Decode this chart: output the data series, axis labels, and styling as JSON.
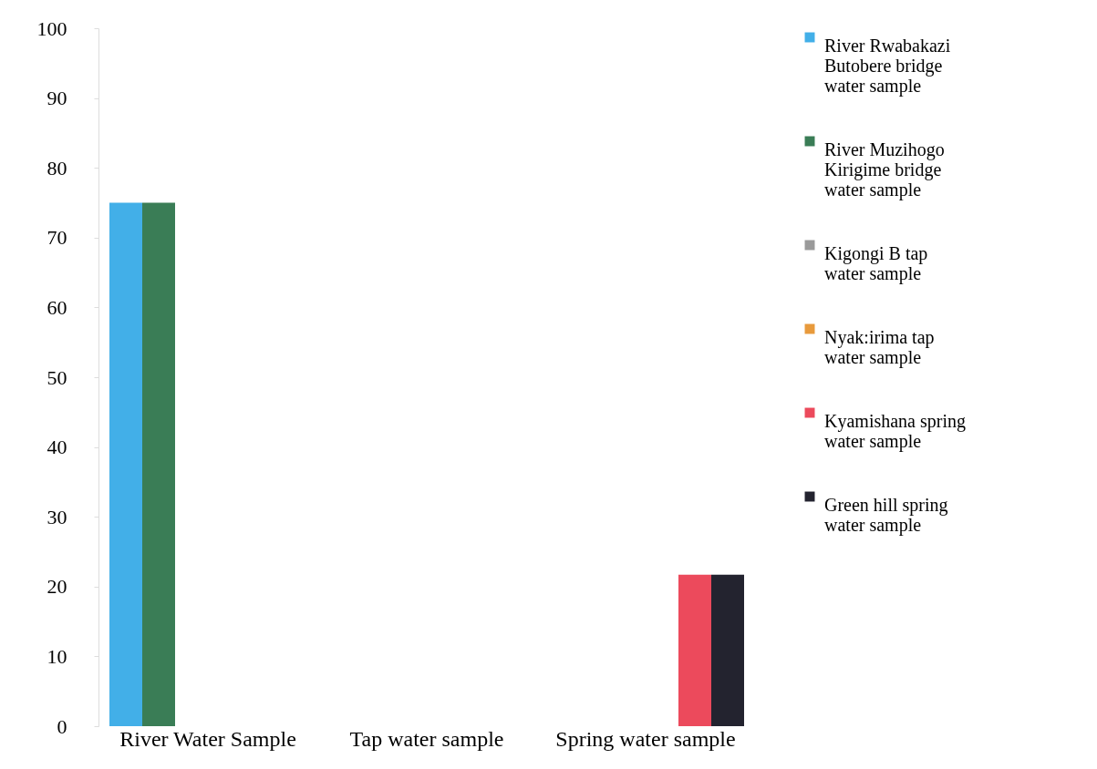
{
  "chart_data": {
    "type": "bar",
    "categories": [
      "River Water Sample",
      "Tap water sample",
      "Spring water sample"
    ],
    "series": [
      {
        "name": "River Rwabakazi Butobere bridge water sample",
        "color": "#42afe8",
        "values": [
          75,
          null,
          null
        ]
      },
      {
        "name": "River Muzihogo Kirigime bridge water sample",
        "color": "#3a7d56",
        "values": [
          75,
          null,
          null
        ]
      },
      {
        "name": "Kigongi B tap water sample",
        "color": "#9a9a9a",
        "values": [
          null,
          null,
          null
        ]
      },
      {
        "name": "Nyak:irima tap water sample",
        "color": "#e89a3c",
        "values": [
          null,
          null,
          null
        ]
      },
      {
        "name": "Kyamishana spring water sample",
        "color": "#ec4a5c",
        "values": [
          null,
          null,
          21.7
        ]
      },
      {
        "name": "Green hill spring water sample",
        "color": "#23232f",
        "values": [
          null,
          null,
          21.7
        ]
      }
    ],
    "ylim": [
      0,
      100
    ],
    "yticks": [
      0,
      10,
      20,
      30,
      40,
      50,
      60,
      70,
      80,
      90,
      100
    ],
    "grid": false,
    "legend": "right"
  }
}
